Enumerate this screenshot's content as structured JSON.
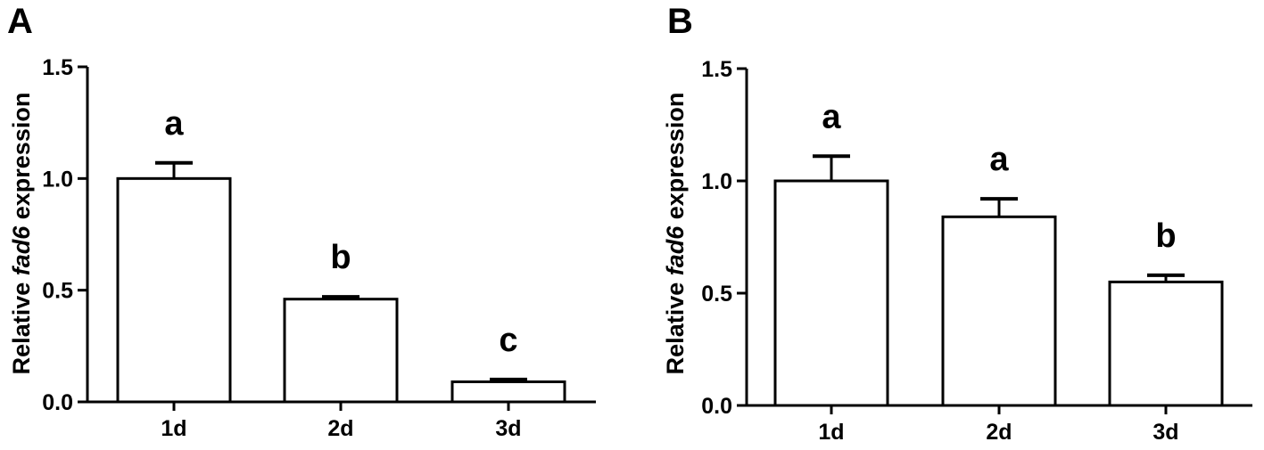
{
  "chart_data": [
    {
      "panel_label": "A",
      "type": "bar",
      "ylabel_pre": "Relative ",
      "ylabel_gene": "fad6",
      "ylabel_post": " expression",
      "categories": [
        "1d",
        "2d",
        "3d"
      ],
      "values": [
        1.0,
        0.46,
        0.09
      ],
      "error": [
        0.07,
        0.01,
        0.01
      ],
      "letters": [
        "a",
        "b",
        "c"
      ],
      "yticks": [
        "0.0",
        "0.5",
        "1.0",
        "1.5"
      ],
      "ylim": [
        0,
        1.5
      ]
    },
    {
      "panel_label": "B",
      "type": "bar",
      "ylabel_pre": "Relative ",
      "ylabel_gene": "fad6",
      "ylabel_post": " expression",
      "categories": [
        "1d",
        "2d",
        "3d"
      ],
      "values": [
        1.0,
        0.84,
        0.55
      ],
      "error": [
        0.11,
        0.08,
        0.03
      ],
      "letters": [
        "a",
        "a",
        "b"
      ],
      "yticks": [
        "0.0",
        "0.5",
        "1.0",
        "1.5"
      ],
      "ylim": [
        0,
        1.5
      ]
    }
  ]
}
